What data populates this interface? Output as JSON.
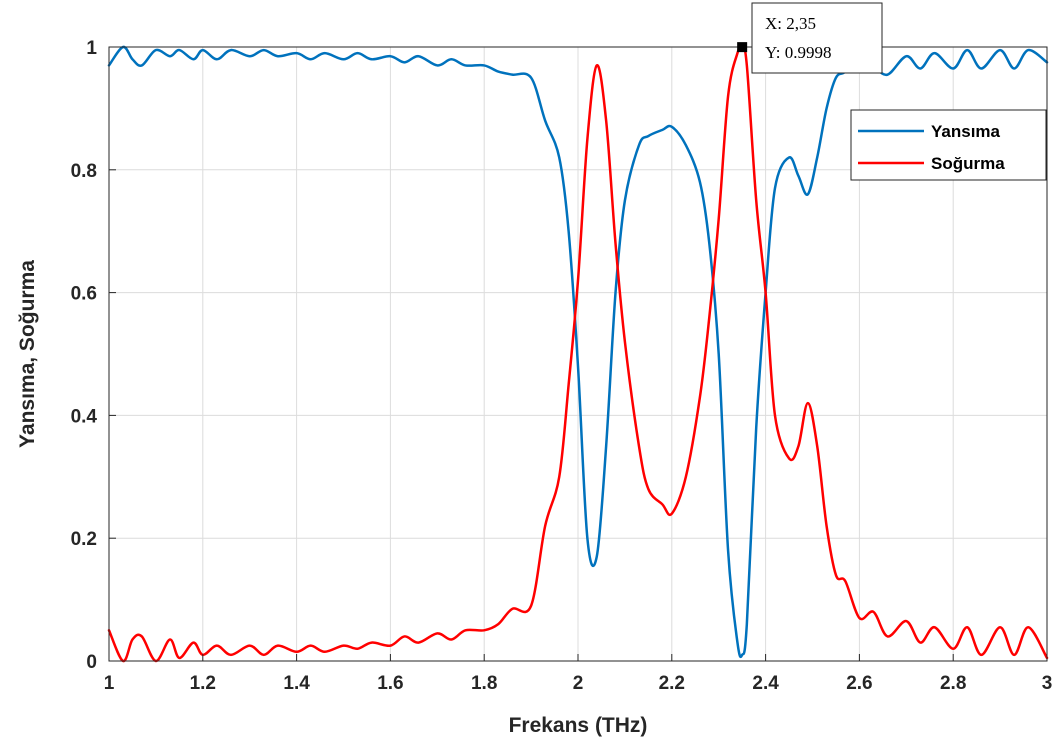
{
  "chart_data": {
    "type": "line",
    "title": "",
    "xlabel": "Frekans (THz)",
    "ylabel": "Yansıma, Soğurma",
    "xlim": [
      1,
      3
    ],
    "ylim": [
      0,
      1
    ],
    "grid": true,
    "x_ticks": [
      1,
      1.2,
      1.4,
      1.6,
      1.8,
      2,
      2.2,
      2.4,
      2.6,
      2.8,
      3
    ],
    "x_tick_labels": [
      "1",
      "1.2",
      "1.4",
      "1.6",
      "1.8",
      "2",
      "2.2",
      "2.4",
      "2.6",
      "2.8",
      "3"
    ],
    "y_ticks": [
      0,
      0.2,
      0.4,
      0.6,
      0.8,
      1
    ],
    "y_tick_labels": [
      "0",
      "0.2",
      "0.4",
      "0.6",
      "0.8",
      "1"
    ],
    "legend_position": "top-right",
    "series": [
      {
        "name": "Yansıma",
        "color": "#0072BD",
        "x": [
          1.0,
          1.03,
          1.05,
          1.07,
          1.1,
          1.13,
          1.15,
          1.18,
          1.2,
          1.23,
          1.26,
          1.3,
          1.33,
          1.36,
          1.4,
          1.43,
          1.46,
          1.5,
          1.53,
          1.56,
          1.6,
          1.63,
          1.66,
          1.7,
          1.73,
          1.76,
          1.8,
          1.83,
          1.86,
          1.9,
          1.93,
          1.96,
          1.98,
          2.0,
          2.02,
          2.04,
          2.06,
          2.08,
          2.1,
          2.13,
          2.15,
          2.18,
          2.2,
          2.23,
          2.26,
          2.28,
          2.3,
          2.32,
          2.34,
          2.35,
          2.36,
          2.38,
          2.4,
          2.42,
          2.45,
          2.47,
          2.49,
          2.51,
          2.53,
          2.55,
          2.57,
          2.6,
          2.63,
          2.66,
          2.7,
          2.73,
          2.76,
          2.8,
          2.83,
          2.86,
          2.9,
          2.93,
          2.96,
          3.0
        ],
        "y": [
          0.97,
          1.0,
          0.98,
          0.97,
          0.995,
          0.985,
          0.995,
          0.98,
          0.995,
          0.98,
          0.995,
          0.985,
          0.995,
          0.985,
          0.99,
          0.98,
          0.99,
          0.98,
          0.99,
          0.98,
          0.985,
          0.975,
          0.985,
          0.97,
          0.98,
          0.97,
          0.97,
          0.96,
          0.955,
          0.95,
          0.88,
          0.82,
          0.7,
          0.48,
          0.2,
          0.17,
          0.35,
          0.6,
          0.75,
          0.84,
          0.855,
          0.865,
          0.87,
          0.84,
          0.78,
          0.68,
          0.5,
          0.18,
          0.03,
          0.01,
          0.06,
          0.38,
          0.6,
          0.77,
          0.82,
          0.79,
          0.76,
          0.82,
          0.9,
          0.95,
          0.96,
          0.99,
          0.97,
          0.955,
          0.985,
          0.965,
          0.99,
          0.965,
          0.995,
          0.965,
          0.995,
          0.965,
          0.995,
          0.975
        ]
      },
      {
        "name": "Soğurma",
        "color": "#FF0000",
        "x": [
          1.0,
          1.03,
          1.05,
          1.07,
          1.1,
          1.13,
          1.15,
          1.18,
          1.2,
          1.23,
          1.26,
          1.3,
          1.33,
          1.36,
          1.4,
          1.43,
          1.46,
          1.5,
          1.53,
          1.56,
          1.6,
          1.63,
          1.66,
          1.7,
          1.73,
          1.76,
          1.8,
          1.83,
          1.86,
          1.9,
          1.93,
          1.96,
          1.98,
          2.0,
          2.02,
          2.04,
          2.06,
          2.08,
          2.1,
          2.13,
          2.15,
          2.18,
          2.2,
          2.23,
          2.26,
          2.28,
          2.3,
          2.32,
          2.34,
          2.35,
          2.36,
          2.38,
          2.4,
          2.42,
          2.45,
          2.47,
          2.49,
          2.51,
          2.53,
          2.55,
          2.57,
          2.6,
          2.63,
          2.66,
          2.7,
          2.73,
          2.76,
          2.8,
          2.83,
          2.86,
          2.9,
          2.93,
          2.96,
          3.0
        ],
        "y": [
          0.05,
          0.0,
          0.035,
          0.04,
          0.0,
          0.035,
          0.005,
          0.03,
          0.01,
          0.025,
          0.01,
          0.025,
          0.01,
          0.025,
          0.015,
          0.025,
          0.015,
          0.025,
          0.02,
          0.03,
          0.025,
          0.04,
          0.03,
          0.045,
          0.035,
          0.05,
          0.05,
          0.06,
          0.085,
          0.09,
          0.22,
          0.3,
          0.45,
          0.62,
          0.85,
          0.97,
          0.88,
          0.68,
          0.52,
          0.35,
          0.28,
          0.255,
          0.24,
          0.3,
          0.43,
          0.56,
          0.72,
          0.92,
          0.99,
          0.9998,
          0.97,
          0.75,
          0.6,
          0.4,
          0.33,
          0.35,
          0.42,
          0.35,
          0.22,
          0.14,
          0.13,
          0.07,
          0.08,
          0.04,
          0.065,
          0.03,
          0.055,
          0.02,
          0.055,
          0.01,
          0.055,
          0.01,
          0.055,
          0.005
        ]
      }
    ],
    "annotation": {
      "x_label": "X: 2,35",
      "y_label": "Y: 0.9998",
      "x": 2.35,
      "y": 0.9998
    }
  }
}
